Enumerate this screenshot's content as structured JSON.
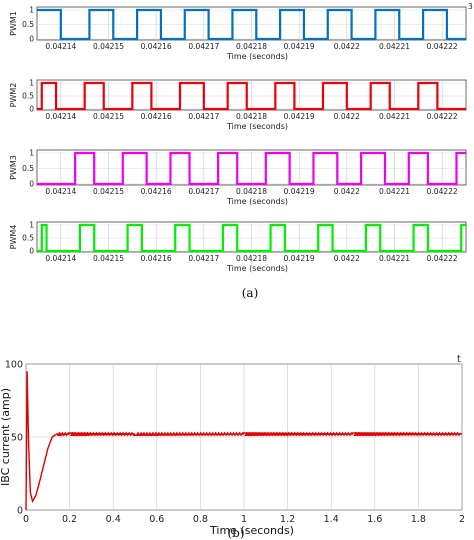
{
  "captions": {
    "top": "(a)",
    "bottom": "(b)"
  },
  "pwm_time_ticks": [
    "0.04214",
    "0.04215",
    "0.04216",
    "0.04217",
    "0.04218",
    "0.04219",
    "0.0422",
    "0.04221",
    "0.04222"
  ],
  "chart_data": [
    {
      "type": "line",
      "ylabel": "PWM1",
      "xlabel": "Time (seconds)",
      "y_ticks": [
        "1",
        "0.5",
        "0"
      ],
      "ylim": [
        0,
        1
      ],
      "grid": true,
      "color": "#0072bd",
      "x_range": [
        0.042135,
        0.042225
      ],
      "x_ticks": [
        0.04214,
        0.04215,
        0.04216,
        0.04217,
        0.04218,
        0.04219,
        0.0422,
        0.04221,
        0.04222
      ],
      "x": [
        0.042135,
        0.04214,
        0.04214,
        0.042146,
        0.042146,
        0.042151,
        0.042151,
        0.042156,
        0.042156,
        0.042161,
        0.042161,
        0.042166,
        0.042166,
        0.042171,
        0.042171,
        0.042176,
        0.042176,
        0.042181,
        0.042181,
        0.042186,
        0.042186,
        0.042191,
        0.042191,
        0.042196,
        0.042196,
        0.042201,
        0.042201,
        0.042206,
        0.042206,
        0.042211,
        0.042211,
        0.042216,
        0.042216,
        0.042221,
        0.042221,
        0.042225
      ],
      "y": [
        1,
        1,
        0,
        0,
        1,
        1,
        0,
        0,
        1,
        1,
        0,
        0,
        1,
        1,
        0,
        0,
        1,
        1,
        0,
        0,
        1,
        1,
        0,
        0,
        1,
        1,
        0,
        0,
        1,
        1,
        0,
        0,
        1,
        1,
        0,
        0
      ],
      "corner_label": "3"
    },
    {
      "type": "line",
      "ylabel": "PWM2",
      "xlabel": "Time (seconds)",
      "y_ticks": [
        "1",
        "0.5",
        "0"
      ],
      "ylim": [
        0,
        1
      ],
      "grid": true,
      "color": "#e8000b",
      "x_range": [
        0.042135,
        0.042225
      ],
      "x_ticks": [
        0.04214,
        0.04215,
        0.04216,
        0.04217,
        0.04218,
        0.04219,
        0.0422,
        0.04221,
        0.04222
      ],
      "x": [
        0.042135,
        0.042136,
        0.042136,
        0.042139,
        0.042139,
        0.042145,
        0.042145,
        0.042149,
        0.042149,
        0.042155,
        0.042155,
        0.042159,
        0.042159,
        0.042165,
        0.042165,
        0.04217,
        0.04217,
        0.042175,
        0.042175,
        0.042179,
        0.042179,
        0.042185,
        0.042185,
        0.042189,
        0.042189,
        0.042195,
        0.042195,
        0.0422,
        0.0422,
        0.042205,
        0.042205,
        0.042209,
        0.042209,
        0.042215,
        0.042215,
        0.042219,
        0.042219,
        0.042225
      ],
      "y": [
        0,
        0,
        1,
        1,
        0,
        0,
        1,
        1,
        0,
        0,
        1,
        1,
        0,
        0,
        1,
        1,
        0,
        0,
        1,
        1,
        0,
        0,
        1,
        1,
        0,
        0,
        1,
        1,
        0,
        0,
        1,
        1,
        0,
        0,
        1,
        1,
        0,
        0
      ]
    },
    {
      "type": "line",
      "ylabel": "PWM3",
      "xlabel": "Time (seconds)",
      "y_ticks": [
        "1",
        "0.5",
        "0"
      ],
      "ylim": [
        0,
        1
      ],
      "grid": true,
      "color": "#ee00ee",
      "x_range": [
        0.042135,
        0.042225
      ],
      "x_ticks": [
        0.04214,
        0.04215,
        0.04216,
        0.04217,
        0.04218,
        0.04219,
        0.0422,
        0.04221,
        0.04222
      ],
      "x": [
        0.042135,
        0.042143,
        0.042143,
        0.042147,
        0.042147,
        0.042153,
        0.042153,
        0.042158,
        0.042158,
        0.042163,
        0.042163,
        0.042167,
        0.042167,
        0.042173,
        0.042173,
        0.042177,
        0.042177,
        0.042183,
        0.042183,
        0.042188,
        0.042188,
        0.042193,
        0.042193,
        0.042198,
        0.042198,
        0.042203,
        0.042203,
        0.042208,
        0.042208,
        0.042213,
        0.042213,
        0.042217,
        0.042217,
        0.042223,
        0.042223,
        0.042225
      ],
      "y": [
        0,
        0,
        1,
        1,
        0,
        0,
        1,
        1,
        0,
        0,
        1,
        1,
        0,
        0,
        1,
        1,
        0,
        0,
        1,
        1,
        0,
        0,
        1,
        1,
        0,
        0,
        1,
        1,
        0,
        0,
        1,
        1,
        0,
        0,
        1,
        1
      ]
    },
    {
      "type": "line",
      "ylabel": "PWM4",
      "xlabel": "Time (seconds)",
      "y_ticks": [
        "1",
        "0.5",
        "0"
      ],
      "ylim": [
        0,
        1
      ],
      "grid": true,
      "color": "#00ee00",
      "x_range": [
        0.042135,
        0.042225
      ],
      "x_ticks": [
        0.04214,
        0.04215,
        0.04216,
        0.04217,
        0.04218,
        0.04219,
        0.0422,
        0.04221,
        0.04222
      ],
      "x": [
        0.042135,
        0.042136,
        0.042136,
        0.042137,
        0.042137,
        0.042144,
        0.042144,
        0.042147,
        0.042147,
        0.042154,
        0.042154,
        0.042157,
        0.042157,
        0.042164,
        0.042164,
        0.042167,
        0.042167,
        0.042174,
        0.042174,
        0.042177,
        0.042177,
        0.042184,
        0.042184,
        0.042187,
        0.042187,
        0.042194,
        0.042194,
        0.042197,
        0.042197,
        0.042204,
        0.042204,
        0.042207,
        0.042207,
        0.042214,
        0.042214,
        0.042217,
        0.042217,
        0.042224,
        0.042224,
        0.042225
      ],
      "y": [
        0,
        0,
        1,
        1,
        0,
        0,
        1,
        1,
        0,
        0,
        1,
        1,
        0,
        0,
        1,
        1,
        0,
        0,
        1,
        1,
        0,
        0,
        1,
        1,
        0,
        0,
        1,
        1,
        0,
        0,
        1,
        1,
        0,
        0,
        1,
        1,
        0,
        0,
        1,
        1
      ]
    },
    {
      "type": "line",
      "ylabel": "IBC current (amp)",
      "xlabel": "Time (seconds)",
      "ylim": [
        0,
        100
      ],
      "y_ticks": [
        0,
        50,
        100
      ],
      "xlim": [
        0,
        2
      ],
      "x_ticks": [
        "0",
        "0.2",
        "0.4",
        "0.6",
        "0.8",
        "1",
        "1.2",
        "1.4",
        "1.6",
        "1.8",
        "2"
      ],
      "grid": true,
      "color": "#dd0000",
      "x": [
        0,
        0.005,
        0.012,
        0.02,
        0.03,
        0.045,
        0.06,
        0.08,
        0.1,
        0.12,
        0.14,
        0.2,
        0.5,
        1.0,
        1.5,
        2.0
      ],
      "y": [
        0,
        95,
        45,
        12,
        6,
        10,
        18,
        30,
        42,
        50,
        52,
        52,
        52,
        52,
        52,
        52
      ],
      "corner_label": "t"
    }
  ]
}
